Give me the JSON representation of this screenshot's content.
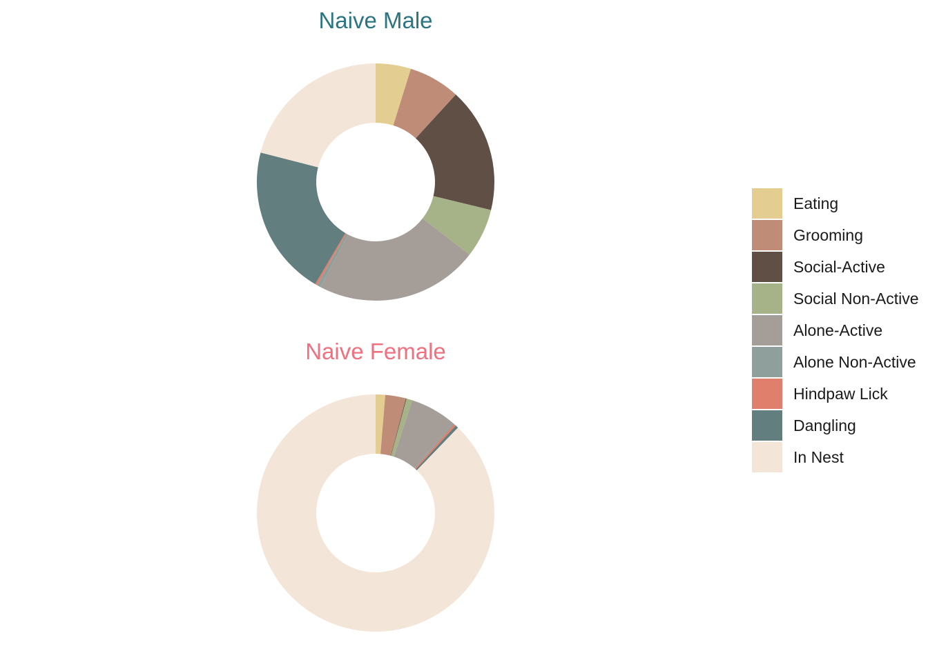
{
  "chart_data": [
    {
      "type": "donut",
      "title": "Naive Male",
      "title_color": "#2B7482",
      "categories": [
        "Eating",
        "Grooming",
        "Social-Active",
        "Social Non-Active",
        "Alone-Active",
        "Alone Non-Active",
        "Hindpaw Lick",
        "Dangling",
        "In Nest"
      ],
      "values": [
        4.8,
        7.0,
        17.0,
        6.7,
        22.2,
        0.5,
        0.3,
        20.5,
        21.0
      ]
    },
    {
      "type": "donut",
      "title": "Naive Female",
      "title_color": "#F07080",
      "categories": [
        "Eating",
        "Grooming",
        "Social-Active",
        "Social Non-Active",
        "Alone-Active",
        "Alone Non-Active",
        "Hindpaw Lick",
        "Dangling",
        "In Nest"
      ],
      "values": [
        1.3,
        2.8,
        0.1,
        0.8,
        6.3,
        0.2,
        0.3,
        0.4,
        87.8
      ]
    }
  ],
  "legend": {
    "position": "right",
    "items": [
      {
        "label": "Eating",
        "color": "#E4CD90"
      },
      {
        "label": "Grooming",
        "color": "#BF8C77"
      },
      {
        "label": "Social-Active",
        "color": "#604F45"
      },
      {
        "label": "Social Non-Active",
        "color": "#A6B287"
      },
      {
        "label": "Alone-Active",
        "color": "#A59E98"
      },
      {
        "label": "Alone Non-Active",
        "color": "#8F9F9C"
      },
      {
        "label": "Hindpaw Lick",
        "color": "#E0806C"
      },
      {
        "label": "Dangling",
        "color": "#627E7E"
      },
      {
        "label": "In Nest",
        "color": "#F4E5D9"
      }
    ]
  }
}
